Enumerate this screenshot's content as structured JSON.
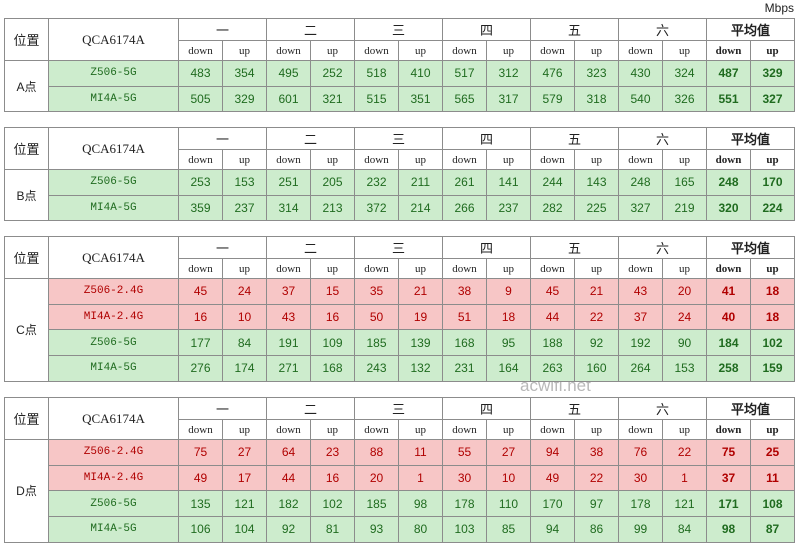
{
  "unit": "Mbps",
  "watermark": "acwifi.net",
  "tables": [
    {
      "position_header": "位置",
      "device_header": "QCA6174A",
      "groups": [
        "一",
        "二",
        "三",
        "四",
        "五",
        "六",
        "平均值"
      ],
      "subheaders": [
        "down",
        "up"
      ],
      "location": "A点",
      "rows": [
        {
          "device": "Z506-5G",
          "fill": "#cdeccd",
          "ink": "#1f6b1f",
          "values": [
            483,
            354,
            495,
            252,
            518,
            410,
            517,
            312,
            476,
            323,
            430,
            324,
            487,
            329
          ]
        },
        {
          "device": "MI4A-5G",
          "fill": "#cdeccd",
          "ink": "#1f6b1f",
          "values": [
            505,
            329,
            601,
            321,
            515,
            351,
            565,
            317,
            579,
            318,
            540,
            326,
            551,
            327
          ]
        }
      ]
    },
    {
      "position_header": "位置",
      "device_header": "QCA6174A",
      "groups": [
        "一",
        "二",
        "三",
        "四",
        "五",
        "六",
        "平均值"
      ],
      "subheaders": [
        "down",
        "up"
      ],
      "location": "B点",
      "rows": [
        {
          "device": "Z506-5G",
          "fill": "#cdeccd",
          "ink": "#1f6b1f",
          "values": [
            253,
            153,
            251,
            205,
            232,
            211,
            261,
            141,
            244,
            143,
            248,
            165,
            248,
            170
          ]
        },
        {
          "device": "MI4A-5G",
          "fill": "#cdeccd",
          "ink": "#1f6b1f",
          "values": [
            359,
            237,
            314,
            213,
            372,
            214,
            266,
            237,
            282,
            225,
            327,
            219,
            320,
            224
          ]
        }
      ]
    },
    {
      "position_header": "位置",
      "device_header": "QCA6174A",
      "groups": [
        "一",
        "二",
        "三",
        "四",
        "五",
        "六",
        "平均值"
      ],
      "subheaders": [
        "down",
        "up"
      ],
      "location": "C点",
      "rows": [
        {
          "device": "Z506-2.4G",
          "fill": "#f7c6c6",
          "ink": "#b00000",
          "values": [
            45,
            24,
            37,
            15,
            35,
            21,
            38,
            9,
            45,
            21,
            43,
            20,
            41,
            18
          ]
        },
        {
          "device": "MI4A-2.4G",
          "fill": "#f7c6c6",
          "ink": "#b00000",
          "values": [
            16,
            10,
            43,
            16,
            50,
            19,
            51,
            18,
            44,
            22,
            37,
            24,
            40,
            18
          ]
        },
        {
          "device": "Z506-5G",
          "fill": "#cdeccd",
          "ink": "#1f6b1f",
          "values": [
            177,
            84,
            191,
            109,
            185,
            139,
            168,
            95,
            188,
            92,
            192,
            90,
            184,
            102
          ]
        },
        {
          "device": "MI4A-5G",
          "fill": "#cdeccd",
          "ink": "#1f6b1f",
          "values": [
            276,
            174,
            271,
            168,
            243,
            132,
            231,
            164,
            263,
            160,
            264,
            153,
            258,
            159
          ]
        }
      ]
    },
    {
      "position_header": "位置",
      "device_header": "QCA6174A",
      "groups": [
        "一",
        "二",
        "三",
        "四",
        "五",
        "六",
        "平均值"
      ],
      "subheaders": [
        "down",
        "up"
      ],
      "location": "D点",
      "rows": [
        {
          "device": "Z506-2.4G",
          "fill": "#f7c6c6",
          "ink": "#b00000",
          "values": [
            75,
            27,
            64,
            23,
            88,
            11,
            55,
            27,
            94,
            38,
            76,
            22,
            75,
            25
          ]
        },
        {
          "device": "MI4A-2.4G",
          "fill": "#f7c6c6",
          "ink": "#b00000",
          "values": [
            49,
            17,
            44,
            16,
            20,
            1,
            30,
            10,
            49,
            22,
            30,
            1,
            37,
            11
          ]
        },
        {
          "device": "Z506-5G",
          "fill": "#cdeccd",
          "ink": "#1f6b1f",
          "values": [
            135,
            121,
            182,
            102,
            185,
            98,
            178,
            110,
            170,
            97,
            178,
            121,
            171,
            108
          ]
        },
        {
          "device": "MI4A-5G",
          "fill": "#cdeccd",
          "ink": "#1f6b1f",
          "values": [
            106,
            104,
            92,
            81,
            93,
            80,
            103,
            85,
            94,
            86,
            99,
            84,
            98,
            87
          ]
        }
      ]
    }
  ]
}
